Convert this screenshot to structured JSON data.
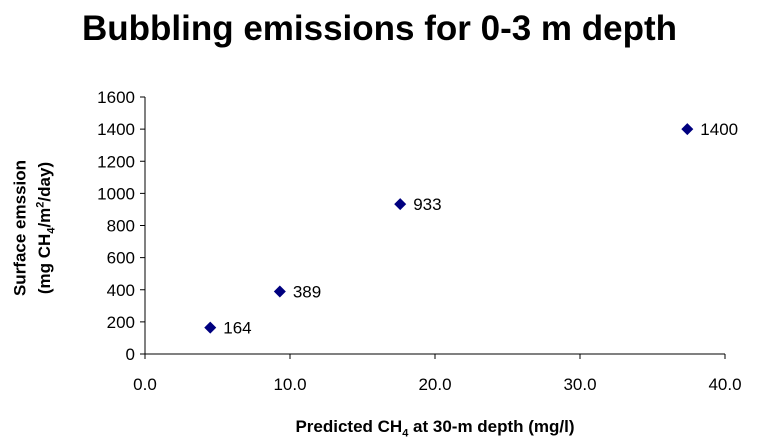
{
  "chart_data": {
    "type": "scatter",
    "title": "Bubbling emissions for 0-3 m depth",
    "xlabel": {
      "pre": "Predicted CH",
      "sub": "4",
      "post": " at 30-m depth (mg/l)"
    },
    "ylabel": {
      "line1": "Surface emssion",
      "line2_pre": "(mg CH",
      "line2_sub": "4",
      "line2_mid": "/m",
      "line2_sup": "2",
      "line2_post": "/day)"
    },
    "xlim": [
      0,
      40
    ],
    "ylim": [
      0,
      1600
    ],
    "x_ticks": [
      "0.0",
      "10.0",
      "20.0",
      "30.0",
      "40.0"
    ],
    "y_ticks": [
      "0",
      "200",
      "400",
      "600",
      "800",
      "1000",
      "1200",
      "1400",
      "1600"
    ],
    "marker": "diamond",
    "marker_color": "#00007f",
    "grid": false,
    "points": [
      {
        "x": 4.5,
        "y": 164,
        "label": "164"
      },
      {
        "x": 9.3,
        "y": 389,
        "label": "389"
      },
      {
        "x": 17.6,
        "y": 933,
        "label": "933"
      },
      {
        "x": 37.4,
        "y": 1400,
        "label": "1400"
      }
    ]
  }
}
